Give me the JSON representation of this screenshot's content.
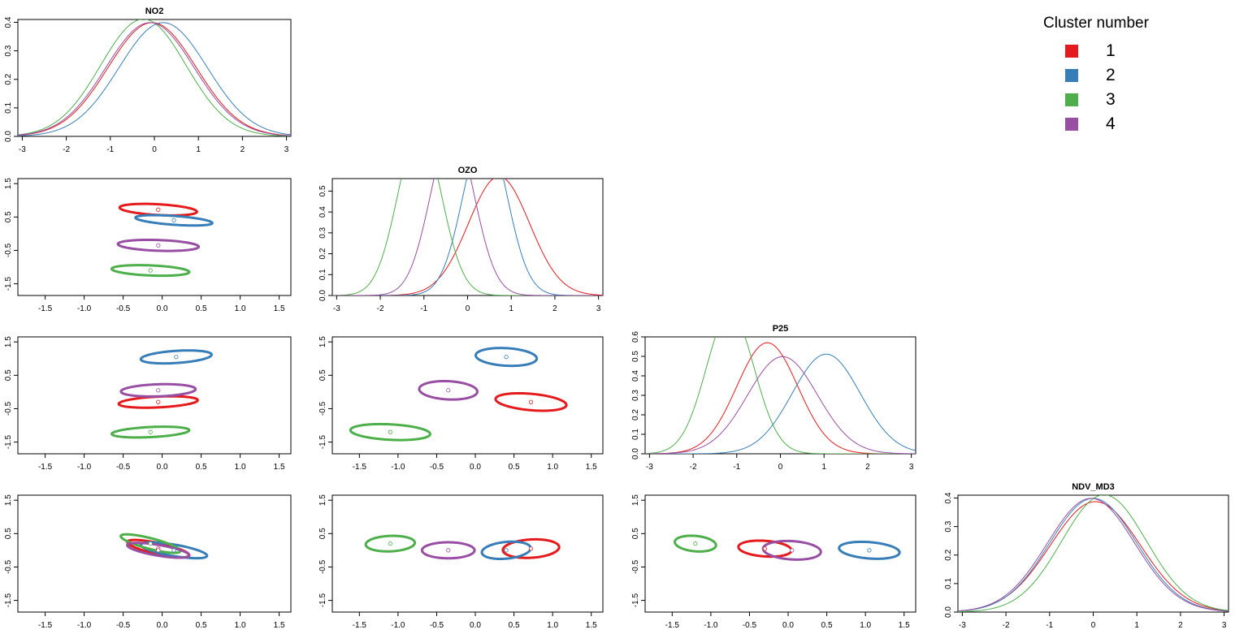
{
  "legend": {
    "title": "Cluster number",
    "items": [
      {
        "label": "1",
        "color": "#E41A1C"
      },
      {
        "label": "2",
        "color": "#377EB8"
      },
      {
        "label": "3",
        "color": "#4DAF4A"
      },
      {
        "label": "4",
        "color": "#984EA3"
      }
    ]
  },
  "chart_data": {
    "type": "scatter-matrix",
    "variables": [
      "NO2",
      "OZO",
      "P25",
      "NDV_MD3"
    ],
    "clusters": [
      "1",
      "2",
      "3",
      "4"
    ],
    "colors": [
      "#E41A1C",
      "#377EB8",
      "#4DAF4A",
      "#984EA3"
    ],
    "density_panels": [
      {
        "variable": "NO2",
        "title": "NO2",
        "xlim": [
          -3.1,
          3.1
        ],
        "ylim": [
          0,
          0.41
        ],
        "xticks": [
          -3,
          -2,
          -1,
          0,
          1,
          2,
          3
        ],
        "yticks": [
          0.0,
          0.1,
          0.2,
          0.3,
          0.4
        ],
        "curves": [
          {
            "cluster": "1",
            "mean": -0.05,
            "sd": 1.0
          },
          {
            "cluster": "2",
            "mean": 0.2,
            "sd": 1.0
          },
          {
            "cluster": "3",
            "mean": -0.25,
            "sd": 0.97
          },
          {
            "cluster": "4",
            "mean": -0.1,
            "sd": 1.0
          }
        ]
      },
      {
        "variable": "OZO",
        "title": "OZO",
        "xlim": [
          -3.1,
          3.1
        ],
        "ylim": [
          0,
          0.56
        ],
        "xticks": [
          -3,
          -2,
          -1,
          0,
          1,
          2,
          3
        ],
        "yticks": [
          0.0,
          0.1,
          0.2,
          0.3,
          0.4,
          0.5
        ],
        "curves": [
          {
            "cluster": "1",
            "mean": 0.72,
            "sd": 0.7
          },
          {
            "cluster": "2",
            "mean": 0.4,
            "sd": 0.5
          },
          {
            "cluster": "3",
            "mean": -1.1,
            "sd": 0.5
          },
          {
            "cluster": "4",
            "mean": -0.35,
            "sd": 0.5
          }
        ]
      },
      {
        "variable": "P25",
        "title": "P25",
        "xlim": [
          -3.1,
          3.1
        ],
        "ylim": [
          0,
          0.6
        ],
        "xticks": [
          -3,
          -2,
          -1,
          0,
          1,
          2,
          3
        ],
        "yticks": [
          0.0,
          0.1,
          0.2,
          0.3,
          0.4,
          0.5,
          0.6
        ],
        "curves": [
          {
            "cluster": "1",
            "mean": -0.3,
            "sd": 0.7
          },
          {
            "cluster": "2",
            "mean": 1.05,
            "sd": 0.78
          },
          {
            "cluster": "3",
            "mean": -1.15,
            "sd": 0.55
          },
          {
            "cluster": "4",
            "mean": 0.05,
            "sd": 0.8
          }
        ]
      },
      {
        "variable": "NDV_MD3",
        "title": "NDV_MD3",
        "xlim": [
          -3.1,
          3.1
        ],
        "ylim": [
          0,
          0.41
        ],
        "xticks": [
          -3,
          -2,
          -1,
          0,
          1,
          2,
          3
        ],
        "yticks": [
          0.0,
          0.1,
          0.2,
          0.3,
          0.4
        ],
        "curves": [
          {
            "cluster": "1",
            "mean": 0.05,
            "sd": 1.03
          },
          {
            "cluster": "2",
            "mean": 0.0,
            "sd": 1.0
          },
          {
            "cluster": "3",
            "mean": 0.25,
            "sd": 0.97
          },
          {
            "cluster": "4",
            "mean": -0.05,
            "sd": 1.0
          }
        ]
      }
    ],
    "scatter_axes": {
      "xlim": [
        -1.85,
        1.65
      ],
      "ylim": [
        -1.85,
        1.65
      ],
      "xticks": [
        -1.5,
        -1.0,
        -0.5,
        0.0,
        0.5,
        1.0,
        1.5
      ],
      "yticks": [
        -1.5,
        -0.5,
        0.5,
        1.5
      ]
    },
    "scatter_panels": [
      {
        "row": 2,
        "col": 1,
        "x": "NO2",
        "y": "OZO",
        "ellipses": [
          {
            "cluster": "1",
            "cx": -0.05,
            "cy": 0.72,
            "rx": 0.5,
            "ry": 0.16,
            "angle": -8
          },
          {
            "cluster": "2",
            "cx": 0.15,
            "cy": 0.4,
            "rx": 0.5,
            "ry": 0.13,
            "angle": -10
          },
          {
            "cluster": "3",
            "cx": -0.15,
            "cy": -1.1,
            "rx": 0.5,
            "ry": 0.15,
            "angle": -6
          },
          {
            "cluster": "4",
            "cx": -0.05,
            "cy": -0.35,
            "rx": 0.52,
            "ry": 0.16,
            "angle": -5
          }
        ]
      },
      {
        "row": 3,
        "col": 1,
        "x": "NO2",
        "y": "P25",
        "ellipses": [
          {
            "cluster": "1",
            "cx": -0.05,
            "cy": -0.3,
            "rx": 0.51,
            "ry": 0.16,
            "angle": 7
          },
          {
            "cluster": "2",
            "cx": 0.18,
            "cy": 1.05,
            "rx": 0.46,
            "ry": 0.18,
            "angle": 10
          },
          {
            "cluster": "3",
            "cx": -0.15,
            "cy": -1.2,
            "rx": 0.5,
            "ry": 0.15,
            "angle": 7
          },
          {
            "cluster": "4",
            "cx": -0.05,
            "cy": 0.05,
            "rx": 0.48,
            "ry": 0.18,
            "angle": 5
          }
        ]
      },
      {
        "row": 3,
        "col": 2,
        "x": "OZO",
        "y": "P25",
        "ellipses": [
          {
            "cluster": "1",
            "cx": 0.72,
            "cy": -0.3,
            "rx": 0.47,
            "ry": 0.24,
            "angle": -15
          },
          {
            "cluster": "2",
            "cx": 0.4,
            "cy": 1.05,
            "rx": 0.4,
            "ry": 0.26,
            "angle": -12
          },
          {
            "cluster": "3",
            "cx": -1.1,
            "cy": -1.2,
            "rx": 0.52,
            "ry": 0.23,
            "angle": -8
          },
          {
            "cluster": "4",
            "cx": -0.35,
            "cy": 0.05,
            "rx": 0.38,
            "ry": 0.27,
            "angle": -12
          }
        ]
      },
      {
        "row": 4,
        "col": 1,
        "x": "NO2",
        "y": "NDV_MD3",
        "ellipses": [
          {
            "cluster": "1",
            "cx": -0.05,
            "cy": 0.05,
            "rx": 0.45,
            "ry": 0.15,
            "angle": -30
          },
          {
            "cluster": "2",
            "cx": 0.15,
            "cy": 0.0,
            "rx": 0.46,
            "ry": 0.16,
            "angle": -24
          },
          {
            "cluster": "3",
            "cx": -0.15,
            "cy": 0.2,
            "rx": 0.45,
            "ry": 0.14,
            "angle": -34
          },
          {
            "cluster": "4",
            "cx": -0.05,
            "cy": 0.0,
            "rx": 0.43,
            "ry": 0.15,
            "angle": -24
          }
        ]
      },
      {
        "row": 4,
        "col": 2,
        "x": "OZO",
        "y": "NDV_MD3",
        "ellipses": [
          {
            "cluster": "1",
            "cx": 0.72,
            "cy": 0.05,
            "rx": 0.37,
            "ry": 0.27,
            "angle": 15
          },
          {
            "cluster": "2",
            "cx": 0.4,
            "cy": 0.0,
            "rx": 0.33,
            "ry": 0.24,
            "angle": 25
          },
          {
            "cluster": "3",
            "cx": -1.1,
            "cy": 0.2,
            "rx": 0.32,
            "ry": 0.23,
            "angle": 10
          },
          {
            "cluster": "4",
            "cx": -0.35,
            "cy": 0.0,
            "rx": 0.34,
            "ry": 0.24,
            "angle": 0
          }
        ]
      },
      {
        "row": 4,
        "col": 3,
        "x": "P25",
        "y": "NDV_MD3",
        "ellipses": [
          {
            "cluster": "1",
            "cx": -0.3,
            "cy": 0.05,
            "rx": 0.35,
            "ry": 0.23,
            "angle": -15
          },
          {
            "cluster": "2",
            "cx": 1.05,
            "cy": 0.0,
            "rx": 0.4,
            "ry": 0.24,
            "angle": -15
          },
          {
            "cluster": "3",
            "cx": -1.2,
            "cy": 0.2,
            "rx": 0.28,
            "ry": 0.22,
            "angle": -30
          },
          {
            "cluster": "4",
            "cx": 0.05,
            "cy": 0.0,
            "rx": 0.38,
            "ry": 0.27,
            "angle": -15
          }
        ]
      }
    ]
  }
}
